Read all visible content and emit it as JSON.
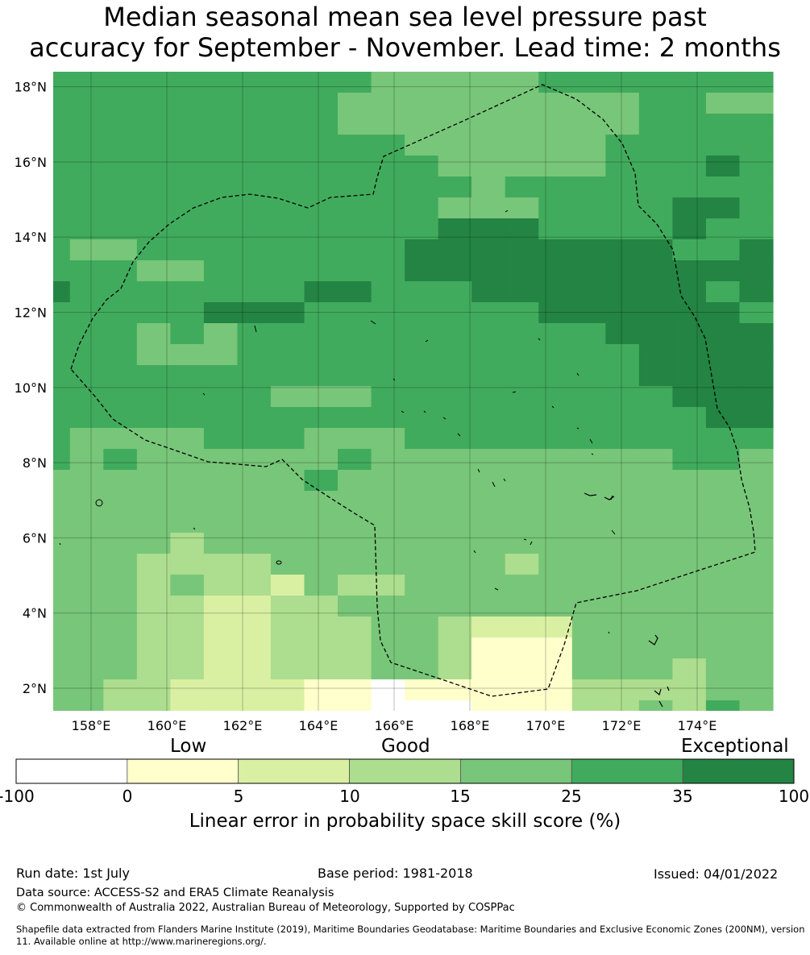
{
  "title": {
    "line1": "Median seasonal mean sea level pressure past",
    "line2": "accuracy for September - November. Lead time: 2 months"
  },
  "map": {
    "lon_range": [
      157,
      176
    ],
    "lat_range": [
      1.4,
      18.4
    ],
    "lat_ticks": [
      "18°N",
      "16°N",
      "14°N",
      "12°N",
      "10°N",
      "8°N",
      "6°N",
      "4°N",
      "2°N"
    ],
    "lon_ticks": [
      "158°E",
      "160°E",
      "162°E",
      "164°E",
      "166°E",
      "168°E",
      "170°E",
      "172°E",
      "174°E"
    ],
    "colors": [
      "#ffffff",
      "#ffffcc",
      "#d9f0a3",
      "#addd8e",
      "#78c679",
      "#41ab5d",
      "#238443"
    ],
    "grid_rows": [
      "5555555555444445555555",
      "5555555554444444445544",
      "5555555554444444445555",
      "5555555555544444455555",
      "5555555555554444455565",
      "5555555555555455555555",
      "5555555555554445555665",
      "5555555555556665555655",
      "5445555555566666666556",
      "5554455555566666666666",
      "6555555566555666666656",
      "5555566655555556666665",
      "5554545555555555566666",
      "5554445555555555556666",
      "5555555555555555556666",
      "5555555444555555555666",
      "5555555555555555555566",
      "5444455544455555555555",
      "5454444445444444444554",
      "4444444454444444444444",
      "4444444444444444444444",
      "4444444444444444444444",
      "4444344444444444444444",
      "4443333444444434444444",
      "4443433243344444444444",
      "4443322334444444444444",
      "4443322333443222444444",
      "4443322333443111444444",
      "4443322333443111444344",
      "4433222211011111333344",
      "4433222211000111334354"
    ]
  },
  "colorbar": {
    "categories": [
      "Low",
      "Good",
      "Exceptional"
    ],
    "ticks": [
      "-100",
      "0",
      "5",
      "10",
      "15",
      "25",
      "35",
      "100"
    ],
    "label": "Linear error in probability space skill score (%)"
  },
  "footer": {
    "run_date": "Run date: 1st July",
    "base_period": "Base period: 1981-2018",
    "issued": "Issued: 04/01/2022",
    "data_source": "Data source: ACCESS-S2 and ERA5 Climate Reanalysis",
    "copyright": "© Commonwealth of Australia 2022, Australian Bureau of Meteorology, Supported by COSPPac",
    "shapefile": "Shapefile data extracted from Flanders Marine Institute (2019), Maritime Boundaries Geodatabase: Maritime Boundaries and Exclusive Economic Zones (200NM), version 11. Available online at http://www.marineregions.org/."
  }
}
